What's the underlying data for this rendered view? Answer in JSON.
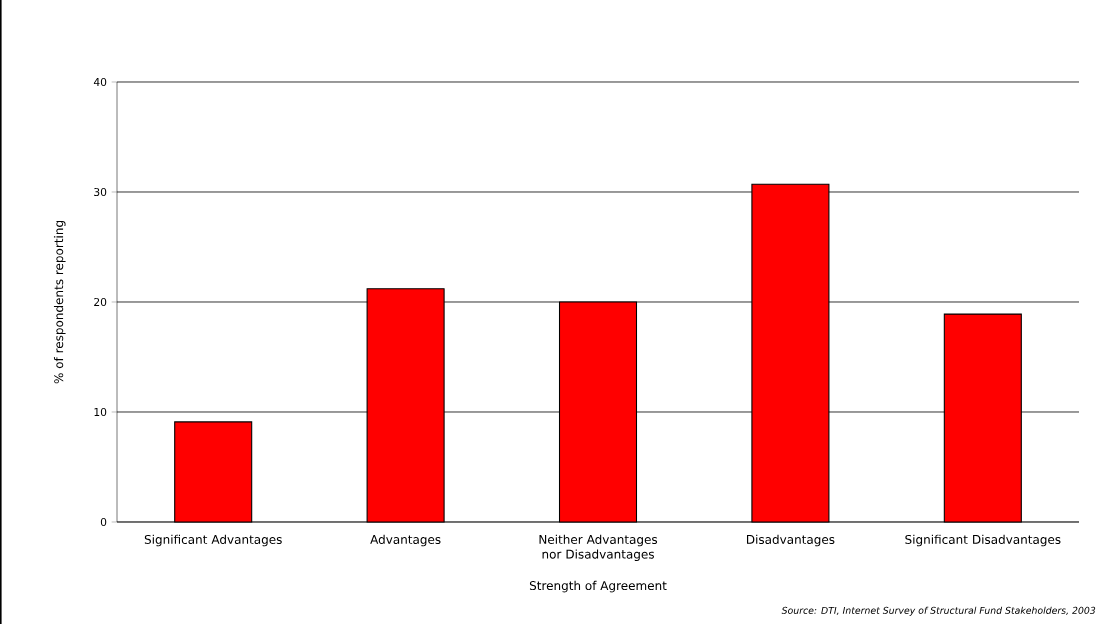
{
  "chart_data": {
    "type": "bar",
    "categories": [
      "Significant Advantages",
      "Advantages",
      "Neither Advantages nor Disadvantages",
      "Disadvantages",
      "Significant Disadvantages"
    ],
    "values": [
      9.1,
      21.2,
      20,
      30.7,
      18.9
    ],
    "color": "#ff0000",
    "xlabel": "Strength of Agreement",
    "ylabel": "% of respondents reporting",
    "ylim": [
      0,
      40
    ],
    "yticks": [
      0,
      10,
      20,
      30,
      40
    ],
    "grid": "y",
    "annotations": [
      "Source: DTI, Internet Survey of Structural Fund Stakeholders, 2003"
    ]
  }
}
